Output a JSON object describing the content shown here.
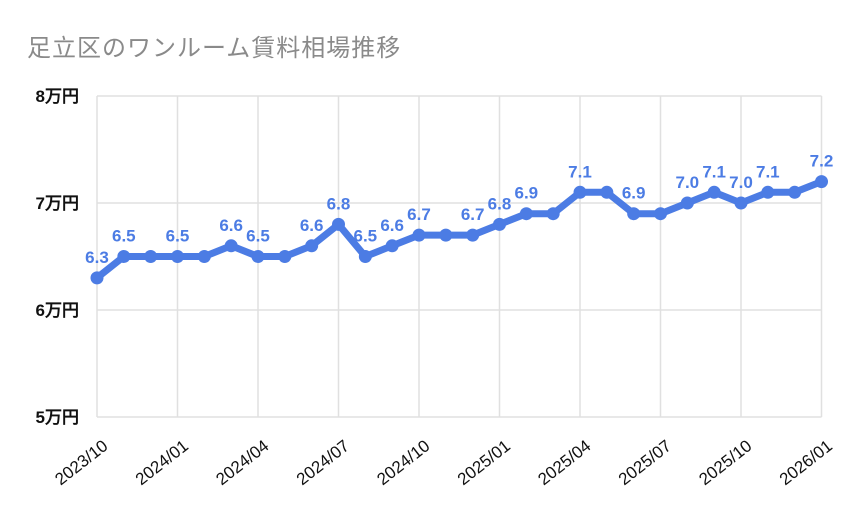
{
  "colors": {
    "line": "#4C7CE4",
    "point": "#4C7CE4",
    "data_label": "#4C7CE4",
    "title": "#8A8A8A",
    "axis_text": "#111111",
    "grid": "#E0E0E0",
    "background": "#FFFFFF"
  },
  "chart_data": {
    "type": "line",
    "title": "足立区のワンルーム賃料相場推移",
    "unit": "万円",
    "x": [
      "2023/10",
      "2023/11",
      "2023/12",
      "2024/01",
      "2024/02",
      "2024/03",
      "2024/04",
      "2024/05",
      "2024/06",
      "2024/07",
      "2024/08",
      "2024/09",
      "2024/10",
      "2024/11",
      "2024/12",
      "2025/01",
      "2025/02",
      "2025/03",
      "2025/04",
      "2025/05",
      "2025/06",
      "2025/07",
      "2025/08",
      "2025/09",
      "2025/10",
      "2025/11",
      "2025/12",
      "2026/01"
    ],
    "values": [
      6.3,
      6.5,
      6.5,
      6.5,
      6.5,
      6.6,
      6.5,
      6.5,
      6.6,
      6.8,
      6.5,
      6.6,
      6.7,
      6.7,
      6.7,
      6.8,
      6.9,
      6.9,
      7.1,
      7.1,
      6.9,
      6.9,
      7.0,
      7.1,
      7.0,
      7.1,
      7.1,
      7.2
    ],
    "point_labels": [
      "6.3",
      "6.5",
      "",
      "6.5",
      "",
      "6.6",
      "6.5",
      "",
      "6.6",
      "6.8",
      "6.5",
      "6.6",
      "6.7",
      "",
      "6.7",
      "6.8",
      "6.9",
      "",
      "7.1",
      "",
      "6.9",
      "",
      "7.0",
      "7.1",
      "7.0",
      "7.1",
      "",
      "7.2"
    ],
    "x_tick_labels": [
      "2023/10",
      "2024/01",
      "2024/04",
      "2024/07",
      "2024/10",
      "2025/01",
      "2025/04",
      "2025/07",
      "2025/10",
      "2026/01"
    ],
    "y_ticks": [
      {
        "value": 8,
        "label": "8万円"
      },
      {
        "value": 7,
        "label": "7万円"
      },
      {
        "value": 6,
        "label": "6万円"
      },
      {
        "value": 5,
        "label": "5万円"
      }
    ],
    "ylim": [
      5,
      8
    ],
    "grid": true,
    "legend": "none"
  }
}
